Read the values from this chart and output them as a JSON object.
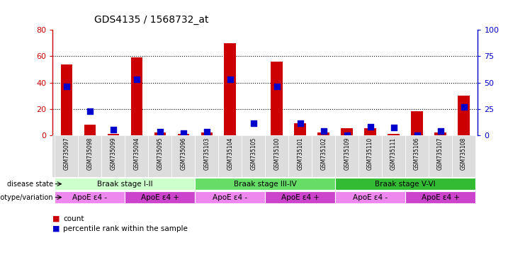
{
  "title": "GDS4135 / 1568732_at",
  "samples": [
    "GSM735097",
    "GSM735098",
    "GSM735099",
    "GSM735094",
    "GSM735095",
    "GSM735096",
    "GSM735103",
    "GSM735104",
    "GSM735105",
    "GSM735100",
    "GSM735101",
    "GSM735102",
    "GSM735109",
    "GSM735110",
    "GSM735111",
    "GSM735106",
    "GSM735107",
    "GSM735108"
  ],
  "counts": [
    54,
    8,
    1,
    59,
    2,
    1,
    2,
    70,
    0,
    56,
    9,
    2,
    5,
    5,
    1,
    18,
    2,
    30
  ],
  "percentiles": [
    46,
    23,
    5,
    53,
    3,
    2,
    3,
    53,
    11,
    46,
    11,
    4,
    0,
    8,
    7,
    0,
    4,
    27
  ],
  "ylim_left": [
    0,
    80
  ],
  "ylim_right": [
    0,
    100
  ],
  "yticks_left": [
    0,
    20,
    40,
    60,
    80
  ],
  "yticks_right": [
    0,
    25,
    50,
    75,
    100
  ],
  "bar_color_count": "#cc0000",
  "bar_color_pct": "#0000cc",
  "disease_state_label": "disease state",
  "genotype_label": "genotype/variation",
  "disease_stages": [
    {
      "label": "Braak stage I-II",
      "start": 0,
      "end": 6,
      "color": "#ccffcc"
    },
    {
      "label": "Braak stage III-IV",
      "start": 6,
      "end": 12,
      "color": "#66dd66"
    },
    {
      "label": "Braak stage V-VI",
      "start": 12,
      "end": 18,
      "color": "#33bb33"
    }
  ],
  "genotype_groups": [
    {
      "label": "ApoE ε4 -",
      "start": 0,
      "end": 3,
      "color": "#ee88ee"
    },
    {
      "label": "ApoE ε4 +",
      "start": 3,
      "end": 6,
      "color": "#cc44cc"
    },
    {
      "label": "ApoE ε4 -",
      "start": 6,
      "end": 9,
      "color": "#ee88ee"
    },
    {
      "label": "ApoE ε4 +",
      "start": 9,
      "end": 12,
      "color": "#cc44cc"
    },
    {
      "label": "ApoE ε4 -",
      "start": 12,
      "end": 15,
      "color": "#ee88ee"
    },
    {
      "label": "ApoE ε4 +",
      "start": 15,
      "end": 18,
      "color": "#cc44cc"
    }
  ],
  "legend_count_label": "count",
  "legend_pct_label": "percentile rank within the sample",
  "background_color": "#ffffff",
  "xtick_bg": "#dddddd",
  "bar_width": 0.5,
  "pct_marker_size": 40
}
